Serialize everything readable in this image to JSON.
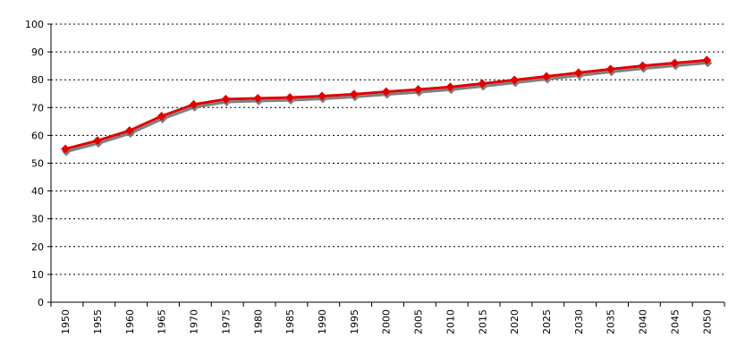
{
  "chart_data": {
    "type": "line",
    "title": "",
    "xlabel": "",
    "ylabel": "",
    "categories": [
      "1950",
      "1955",
      "1960",
      "1965",
      "1970",
      "1975",
      "1980",
      "1985",
      "1990",
      "1995",
      "2000",
      "2005",
      "2010",
      "2015",
      "2020",
      "2025",
      "2030",
      "2035",
      "2040",
      "2045",
      "2050"
    ],
    "series": [
      {
        "values": [
          55.1,
          58.1,
          61.7,
          66.9,
          71.1,
          73.0,
          73.3,
          73.6,
          74.1,
          74.8,
          75.7,
          76.5,
          77.4,
          78.6,
          79.9,
          81.2,
          82.5,
          83.8,
          85.0,
          86.0,
          87.0
        ],
        "color": "#e00000",
        "shadow_color": "#808080",
        "marker": "diamond"
      }
    ],
    "ylim": [
      0,
      100
    ],
    "yticks": [
      0,
      10,
      20,
      30,
      40,
      50,
      60,
      70,
      80,
      90,
      100
    ],
    "grid": "horizontal dotted",
    "legend": "none"
  }
}
